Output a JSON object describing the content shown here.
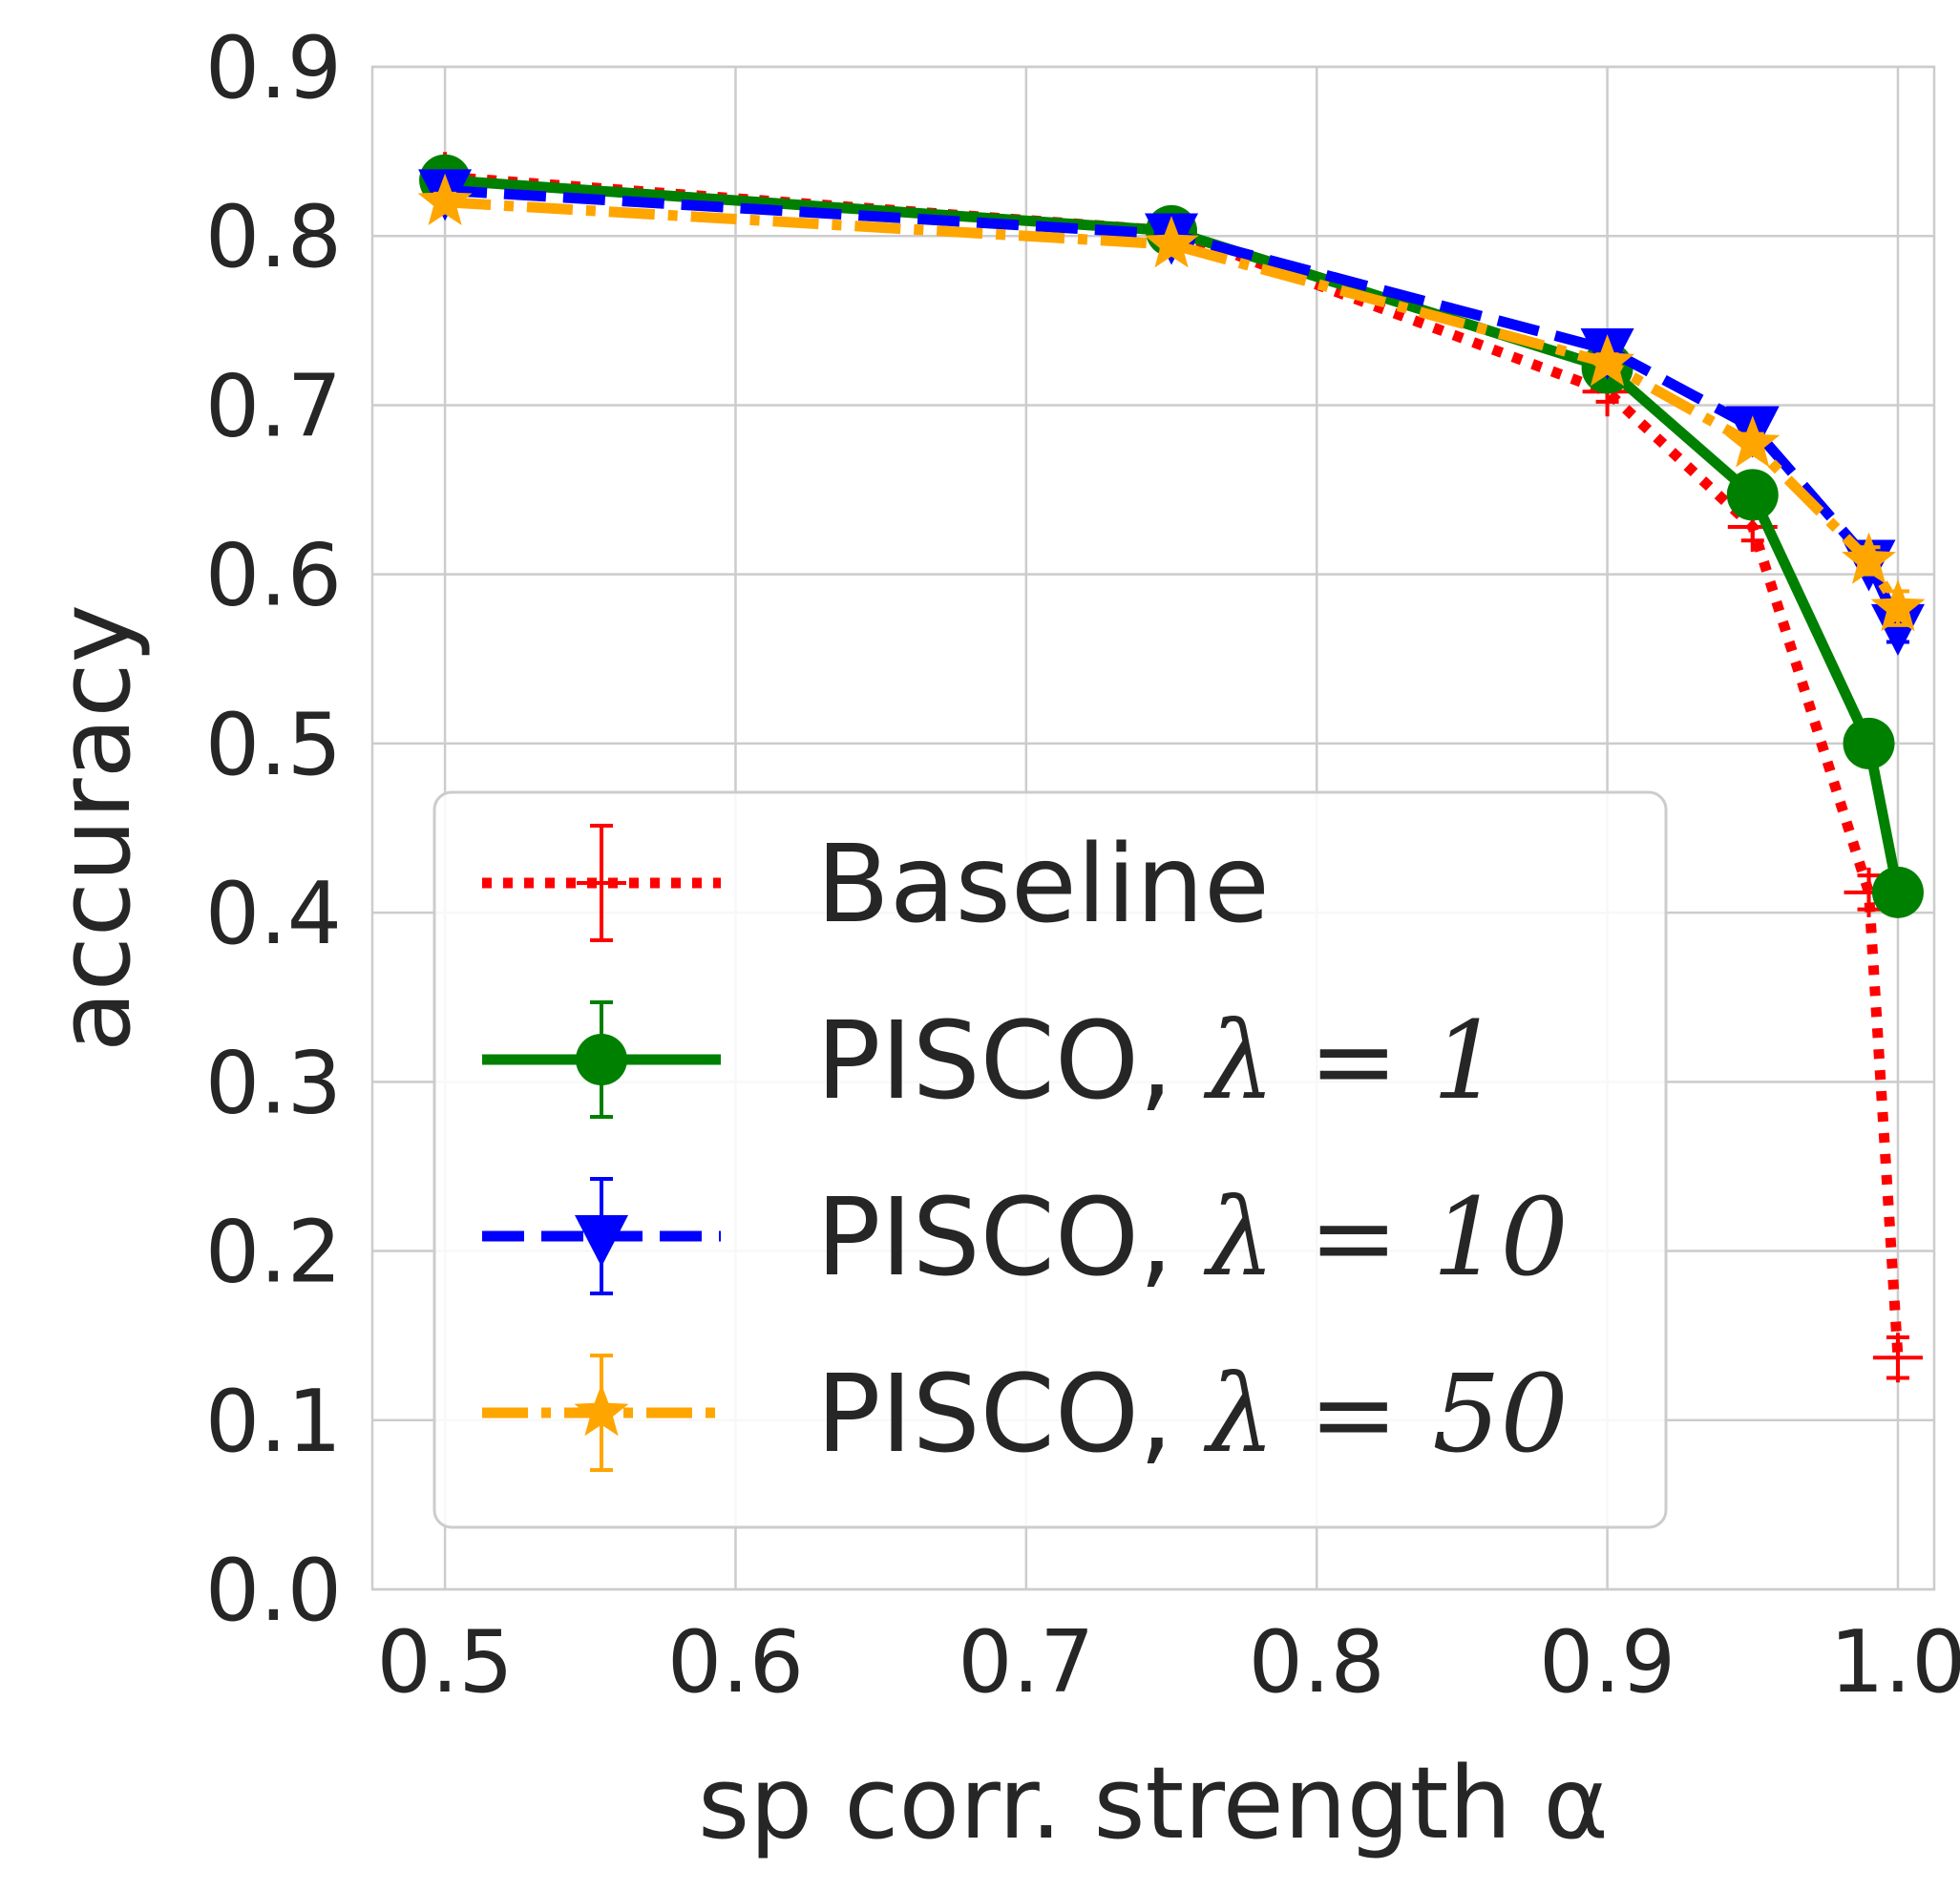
{
  "chart_data": {
    "type": "line",
    "xlabel": "sp corr. strength α",
    "ylabel": "accuracy",
    "xlim": [
      0.475,
      1.0125
    ],
    "ylim": [
      0.0,
      0.9
    ],
    "xticks": [
      0.5,
      0.6,
      0.7,
      0.8,
      0.9,
      1.0
    ],
    "xtick_labels": [
      "0.5",
      "0.6",
      "0.7",
      "0.8",
      "0.9",
      "1.0"
    ],
    "yticks": [
      0.0,
      0.1,
      0.2,
      0.3,
      0.4,
      0.5,
      0.6,
      0.7,
      0.8,
      0.9
    ],
    "ytick_labels": [
      "0.0",
      "0.1",
      "0.2",
      "0.3",
      "0.4",
      "0.5",
      "0.6",
      "0.7",
      "0.8",
      "0.9"
    ],
    "grid": true,
    "legend_position": "lower-left",
    "x": [
      0.5,
      0.75,
      0.9,
      0.95,
      0.99,
      1.0
    ],
    "series": [
      {
        "name": "Baseline",
        "name_prefix": "",
        "name_math": "",
        "values": [
          0.835,
          0.803,
          0.708,
          0.628,
          0.412,
          0.137
        ],
        "errors": [
          0.005,
          0.004,
          0.006,
          0.008,
          0.01,
          0.012
        ],
        "color": "#ff0000",
        "marker": "plus",
        "linestyle": "dotted"
      },
      {
        "name": "PISCO, λ = 1",
        "name_prefix": "PISCO, ",
        "name_math": "λ = 1",
        "values": [
          0.833,
          0.803,
          0.722,
          0.647,
          0.5,
          0.412
        ],
        "errors": [
          0.005,
          0.004,
          0.005,
          0.006,
          0.008,
          0.008
        ],
        "color": "#008000",
        "marker": "circle",
        "linestyle": "solid"
      },
      {
        "name": "PISCO, λ = 10",
        "name_prefix": "PISCO, ",
        "name_math": "λ = 10",
        "values": [
          0.827,
          0.801,
          0.733,
          0.687,
          0.608,
          0.57
        ],
        "errors": [
          0.005,
          0.004,
          0.005,
          0.006,
          0.008,
          0.01
        ],
        "color": "#0000ff",
        "marker": "triangle-down",
        "linestyle": "dashed"
      },
      {
        "name": "PISCO, λ = 50",
        "name_prefix": "PISCO, ",
        "name_math": "λ = 50",
        "values": [
          0.82,
          0.795,
          0.725,
          0.677,
          0.608,
          0.58
        ],
        "errors": [
          0.005,
          0.004,
          0.005,
          0.006,
          0.008,
          0.01
        ],
        "color": "#ffa500",
        "marker": "star",
        "linestyle": "dashdot"
      }
    ]
  }
}
